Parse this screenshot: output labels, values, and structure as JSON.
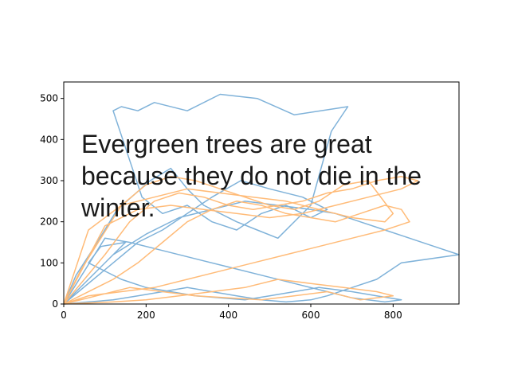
{
  "chart_data": {
    "type": "line",
    "title": "",
    "xlabel": "",
    "ylabel": "",
    "xlim": [
      0,
      960
    ],
    "ylim": [
      0,
      540
    ],
    "xticks": [
      0,
      200,
      400,
      600,
      800
    ],
    "yticks": [
      0,
      100,
      200,
      300,
      400,
      500
    ],
    "grid": false,
    "legend": "none",
    "annotation": {
      "lines": [
        "Evergreen trees are great",
        "because they do not die in the",
        "winter."
      ]
    },
    "series": [
      {
        "color": "#7fb2d9",
        "x": [
          0,
          30,
          75,
          130,
          210,
          260,
          300,
          340,
          420,
          470,
          520,
          600,
          650,
          690,
          560,
          470,
          380,
          300,
          220,
          180,
          140,
          120,
          150,
          190,
          240,
          300,
          360,
          420,
          480,
          540,
          600,
          640,
          580,
          500,
          430,
          360,
          300,
          240,
          180,
          0,
          0,
          150,
          90,
          60,
          140,
          200,
          260,
          320,
          380,
          440,
          500,
          560,
          620,
          700,
          760,
          820,
          780,
          700,
          640,
          560,
          480,
          400,
          320,
          240,
          160,
          100,
          0,
          0,
          120,
          200,
          280,
          360,
          440,
          520,
          600,
          660,
          720,
          780,
          840,
          900,
          960,
          820,
          760,
          700,
          640,
          600,
          540,
          480,
          420,
          360,
          300,
          240,
          180,
          120,
          60,
          0
        ],
        "y": [
          0,
          70,
          140,
          230,
          300,
          330,
          280,
          240,
          200,
          180,
          160,
          240,
          420,
          480,
          460,
          500,
          510,
          470,
          490,
          470,
          480,
          470,
          380,
          260,
          220,
          240,
          200,
          180,
          220,
          240,
          210,
          230,
          260,
          280,
          300,
          260,
          220,
          180,
          150,
          0,
          0,
          150,
          140,
          100,
          60,
          40,
          30,
          20,
          15,
          10,
          20,
          30,
          40,
          30,
          20,
          10,
          5,
          15,
          30,
          50,
          70,
          90,
          110,
          130,
          150,
          160,
          0,
          0,
          120,
          170,
          210,
          230,
          250,
          240,
          230,
          220,
          200,
          180,
          160,
          140,
          120,
          100,
          60,
          40,
          20,
          10,
          5,
          10,
          20,
          30,
          40,
          30,
          20,
          10,
          5,
          0
        ]
      },
      {
        "color": "#ffbb78",
        "x": [
          0,
          40,
          90,
          140,
          200,
          260,
          320,
          380,
          440,
          500,
          560,
          620,
          680,
          740,
          800,
          780,
          700,
          620,
          540,
          460,
          380,
          300,
          220,
          140,
          60,
          0,
          0,
          100,
          160,
          220,
          280,
          340,
          400,
          460,
          520,
          580,
          640,
          700,
          760,
          820,
          860,
          820,
          740,
          660,
          580,
          500,
          420,
          340,
          260,
          180,
          100,
          0,
          0,
          120,
          180,
          240,
          300,
          360,
          420,
          480,
          540,
          600,
          660,
          720,
          780,
          820,
          840,
          780,
          700,
          620,
          540,
          460,
          380,
          300,
          220,
          140,
          60,
          0,
          0,
          160,
          240,
          320,
          400,
          480,
          560,
          640,
          720,
          800,
          760,
          680,
          600,
          520,
          440,
          360,
          280,
          200,
          120,
          0
        ],
        "y": [
          0,
          80,
          160,
          240,
          290,
          310,
          300,
          280,
          260,
          240,
          230,
          250,
          290,
          300,
          220,
          200,
          210,
          230,
          250,
          260,
          270,
          280,
          260,
          240,
          180,
          0,
          0,
          120,
          200,
          250,
          270,
          260,
          240,
          230,
          240,
          250,
          270,
          280,
          300,
          310,
          300,
          280,
          260,
          240,
          220,
          210,
          220,
          230,
          240,
          230,
          190,
          0,
          0,
          60,
          100,
          150,
          200,
          230,
          250,
          240,
          220,
          210,
          200,
          220,
          240,
          230,
          200,
          180,
          160,
          140,
          120,
          100,
          80,
          60,
          40,
          30,
          20,
          0,
          0,
          40,
          30,
          20,
          15,
          10,
          20,
          30,
          10,
          20,
          30,
          40,
          50,
          60,
          40,
          30,
          20,
          10,
          5,
          0
        ]
      }
    ]
  }
}
